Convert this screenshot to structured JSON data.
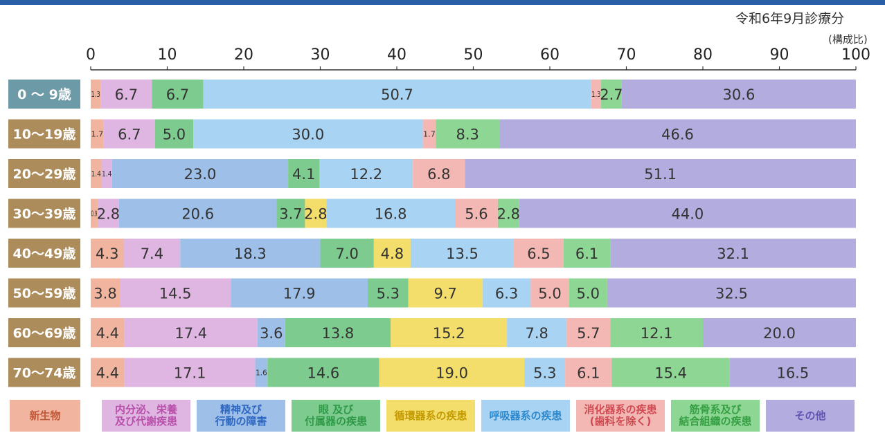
{
  "note": "令和6年9月診療分",
  "unit": "(構成比)",
  "chart_data": {
    "type": "bar",
    "orientation": "horizontal",
    "stacked": true,
    "xlim": [
      0,
      100
    ],
    "ticks": [
      "0",
      "10",
      "20",
      "30",
      "40",
      "50",
      "60",
      "70",
      "80",
      "90",
      "100"
    ],
    "categories": [
      "0 ～ 9歳",
      "10～19歳",
      "20～29歳",
      "30～39歳",
      "40～49歳",
      "50～59歳",
      "60～69歳",
      "70～74歳"
    ],
    "series": [
      {
        "name": "新生物",
        "color": "#f1b49e",
        "label_color": "#c0593a",
        "values": [
          1.3,
          1.7,
          1.4,
          0.9,
          4.3,
          3.8,
          4.4,
          4.4
        ]
      },
      {
        "name": "内分泌、栄養\n及び代謝疾患",
        "color": "#dfb6e2",
        "label_color": "#b94faa",
        "values": [
          6.7,
          6.7,
          1.4,
          2.8,
          7.4,
          14.5,
          17.4,
          17.1
        ]
      },
      {
        "name": "精神及び\n行動の障害",
        "color": "#9dbfe8",
        "label_color": "#2f68c0",
        "values": [
          0,
          0,
          23.0,
          20.6,
          18.3,
          17.9,
          3.6,
          1.6
        ]
      },
      {
        "name": "眼 及び\n付属器の疾患",
        "color": "#7ecb8f",
        "label_color": "#2e9a48",
        "values": [
          6.7,
          5.0,
          4.1,
          3.7,
          7.0,
          5.3,
          13.8,
          14.6
        ]
      },
      {
        "name": "循環器系の疾患",
        "color": "#f3dd6b",
        "label_color": "#c49a00",
        "values": [
          0,
          0,
          0,
          2.8,
          4.8,
          9.7,
          15.2,
          19.0
        ]
      },
      {
        "name": "呼吸器系の疾患",
        "color": "#a9d3f2",
        "label_color": "#2d88cc",
        "values": [
          50.7,
          30.0,
          12.2,
          16.8,
          13.5,
          6.3,
          7.8,
          5.3
        ]
      },
      {
        "name": "消化器系の疾患\n(歯科を除く)",
        "color": "#f3b8b4",
        "label_color": "#cf4a52",
        "values": [
          1.3,
          1.7,
          6.8,
          5.6,
          6.5,
          5.0,
          5.7,
          6.1
        ]
      },
      {
        "name": "筋骨系及び\n結合組織の疾患",
        "color": "#8ed693",
        "label_color": "#36a044",
        "values": [
          2.7,
          8.3,
          0,
          2.8,
          6.1,
          5.0,
          12.1,
          15.4
        ]
      },
      {
        "name": "その他",
        "color": "#b3addf",
        "label_color": "#6354b3",
        "values": [
          30.6,
          46.6,
          51.1,
          44.0,
          32.1,
          32.5,
          20.0,
          16.5
        ]
      }
    ],
    "category_label_colors": [
      "#6c9aa6",
      "#ad8c5c",
      "#ad8c5c",
      "#ad8c5c",
      "#ad8c5c",
      "#ad8c5c",
      "#ad8c5c",
      "#ad8c5c"
    ]
  }
}
